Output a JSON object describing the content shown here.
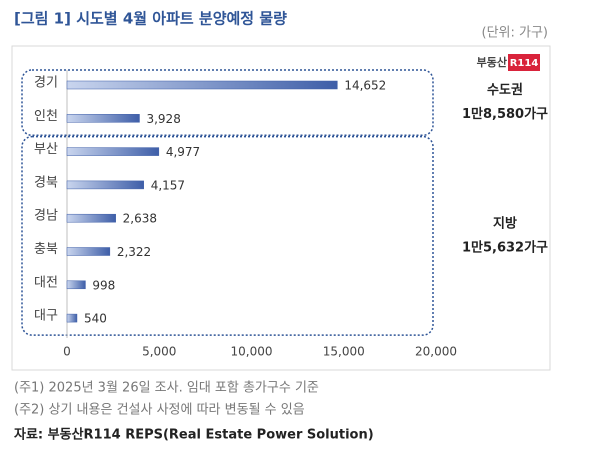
{
  "chart_data": {
    "type": "hbar",
    "title": "[그림 1] 시도별 4월 아파트 분양예정 물량",
    "unit_label": "(단위: 가구)",
    "logo": [
      "부동산",
      "R114"
    ],
    "categories": [
      "경기",
      "인천",
      "부산",
      "경북",
      "경남",
      "충북",
      "대전",
      "대구"
    ],
    "values": [
      14652,
      3928,
      4977,
      4157,
      2638,
      2322,
      998,
      540
    ],
    "value_labels": [
      "14,652",
      "3,928",
      "4,977",
      "4,157",
      "2,638",
      "2,322",
      "998",
      "540"
    ],
    "color": "#3e5ea8",
    "xlim": [
      0,
      20000
    ],
    "xticks": [
      0,
      {
        "value": 5000,
        "label": "5,000"
      },
      {
        "value": 10000,
        "label": "10,000"
      },
      {
        "value": 15000,
        "label": "15,000"
      },
      {
        "value": 20000,
        "label": "20,000"
      }
    ],
    "groups": [
      {
        "name": "수도권",
        "total": "1만8,580가구"
      },
      {
        "name": "지방",
        "total": "1만5,632가구"
      }
    ]
  },
  "notes": [
    "(주1) 2025년 3월 26일 조사. 임대 포함 총가구수 기준",
    "(주2) 상기 내용은 건설사 사정에 따라 변동될 수 있음"
  ],
  "source": "자료: 부동산R114 REPS(Real Estate Power Solution)"
}
